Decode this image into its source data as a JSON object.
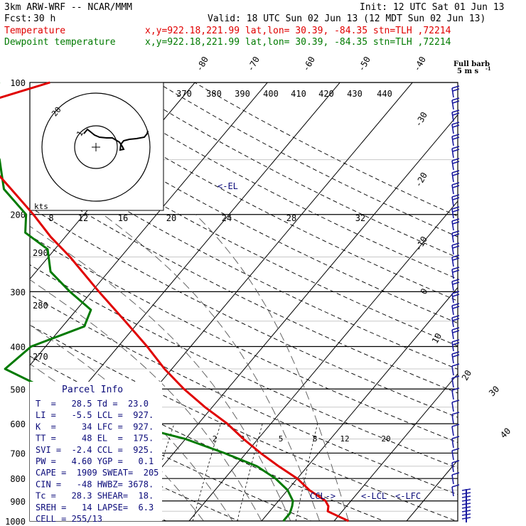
{
  "header": {
    "model": "3km ARW-WRF -- NCAR/MMM",
    "init": "Init: 12 UTC Sat 01 Jun 13",
    "fcst_label": "Fcst:",
    "fcst_value": "30 h",
    "valid": "Valid: 18 UTC Sun 02 Jun 13 (12 MDT Sun 02 Jun 13)",
    "temp_label": "Temperature",
    "temp_info": "x,y=922.18,221.99   lat,lon= 30.39, -84.35  stn=TLH ,72214",
    "dew_label": "Dewpoint temperature",
    "dew_info": "x,y=922.18,221.99   lat,lon= 30.39, -84.35  stn=TLH ,72214"
  },
  "colors": {
    "temperature": "#e00000",
    "dewpoint": "#007a00",
    "grid": "#000000",
    "text_accent": "#0a0a7a"
  },
  "barb_label": {
    "line1": "Full barb",
    "line2": "5 m s"
  },
  "pressure_labels": [
    "100",
    "200",
    "300",
    "400",
    "500",
    "600",
    "700",
    "800",
    "900",
    "1000"
  ],
  "temp_diag_labels": [
    "-80",
    "-70",
    "-60",
    "-50",
    "-40",
    "-30",
    "-20",
    "-10",
    "0",
    "10",
    "20",
    "30",
    "40"
  ],
  "theta_labels": [
    "370",
    "380",
    "390",
    "400",
    "410",
    "420",
    "430",
    "440"
  ],
  "theta_side_labels": [
    "290",
    "280",
    "270"
  ],
  "mixing_labels": [
    "2",
    "3",
    "5",
    "8",
    "12",
    "20"
  ],
  "hodo": {
    "kts_label": "kts",
    "ring_label": "20",
    "speed_labels": [
      "8",
      "12",
      "16",
      "20",
      "24",
      "28",
      "32"
    ]
  },
  "markers": {
    "el": "<-EL",
    "ccl": "CCL->",
    "lcl": "<-LCL",
    "lfc": "<-LFC"
  },
  "parcel": {
    "title": "Parcel Info",
    "rows": [
      "T  =   28.5 Td =  23.0",
      "LI =   -5.5 LCL =  927.",
      "K  =     34 LFC =  927.",
      "TT =     48 EL  =  175.",
      "SVI =  -2.4 CCL =  925.",
      "PW =   4.60 YGP =   0.1",
      "CAPE =  1909 SWEAT=  205",
      "CIN =   -48 HWBZ= 3678.",
      "Tc =   28.3 SHEAR=  18.",
      "SREH =   14 LAPSE=  6.3",
      "CELL = 255/13"
    ]
  },
  "chart_data": {
    "type": "line",
    "title": "",
    "xlabel": "",
    "ylabel": "",
    "y_scale": "log pressure (hPa), inverted",
    "ylim": [
      1000,
      100
    ],
    "series": [
      {
        "name": "Temperature",
        "pressure": [
          1000,
          975,
          950,
          925,
          900,
          850,
          800,
          750,
          700,
          650,
          600,
          550,
          500,
          450,
          400,
          350,
          300,
          250,
          225,
          200,
          175,
          150,
          125,
          115,
          100
        ],
        "temp_c": [
          32,
          30,
          28,
          27.5,
          26.5,
          23,
          20,
          16,
          12,
          8,
          4,
          -1,
          -6,
          -11,
          -16,
          -22,
          -29,
          -37,
          -42,
          -47,
          -53,
          -60,
          -67,
          -69,
          -60
        ]
      },
      {
        "name": "Dewpoint temperature",
        "pressure": [
          1000,
          960,
          925,
          900,
          850,
          800,
          750,
          700,
          650,
          600,
          550,
          500,
          450,
          400,
          360,
          330,
          300,
          270,
          240,
          220,
          200,
          175,
          150,
          125,
          100
        ],
        "temp_c": [
          23,
          23,
          22.5,
          22,
          20,
          17,
          13,
          7,
          0,
          -10,
          -18,
          -25,
          -33,
          -32,
          -27,
          -28,
          -33,
          -38,
          -41,
          -46,
          -48,
          -54,
          -58,
          -64,
          -67
        ]
      }
    ]
  }
}
